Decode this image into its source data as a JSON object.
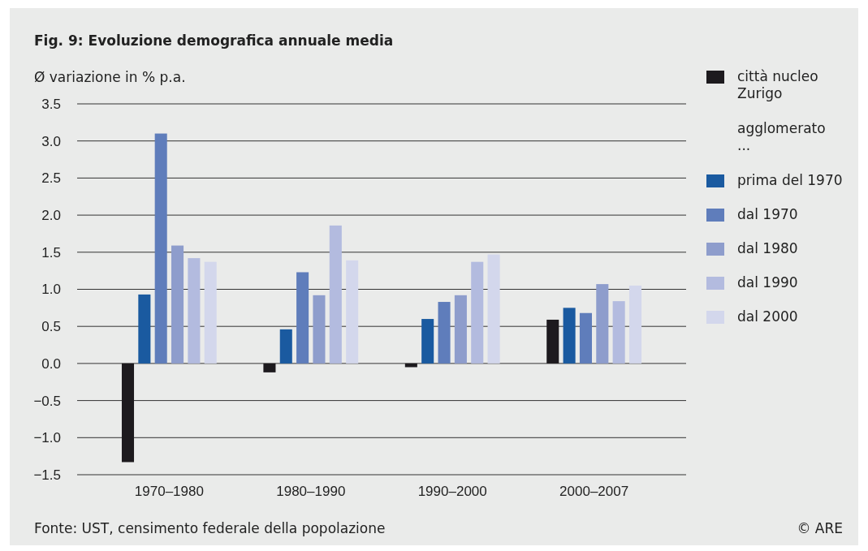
{
  "chart_data": {
    "type": "bar",
    "title": "Fig. 9: Evoluzione demografica annuale media",
    "ylabel": "Ø variazione in % p.a.",
    "categories": [
      "1970–1980",
      "1980–1990",
      "1990–2000",
      "2000–2007"
    ],
    "series": [
      {
        "name": "città nucleo Zurigo",
        "color": "#1d1a1e",
        "values": [
          -1.33,
          -0.12,
          -0.05,
          0.59
        ]
      },
      {
        "name": "prima del 1970",
        "color": "#1a5aa0",
        "values": [
          0.93,
          0.46,
          0.6,
          0.75
        ]
      },
      {
        "name": "dal 1970",
        "color": "#5f7dbb",
        "values": [
          3.1,
          1.23,
          0.83,
          0.68
        ]
      },
      {
        "name": "dal 1980",
        "color": "#8e9dcc",
        "values": [
          1.59,
          0.92,
          0.92,
          1.07
        ]
      },
      {
        "name": "dal 1990",
        "color": "#b3bbdf",
        "values": [
          1.42,
          1.86,
          1.37,
          0.84
        ]
      },
      {
        "name": "dal 2000",
        "color": "#d3d7ec",
        "values": [
          1.37,
          1.39,
          1.47,
          1.05
        ]
      }
    ],
    "ylim": [
      -1.5,
      3.5
    ],
    "yticks": [
      {
        "value": -1.5,
        "label": "−1.5"
      },
      {
        "value": -1,
        "label": "−1.0"
      },
      {
        "value": -0.5,
        "label": "−0.5"
      },
      {
        "value": 0,
        "label": "0.0"
      },
      {
        "value": 0.5,
        "label": "0.5"
      },
      {
        "value": 1,
        "label": "1.0"
      },
      {
        "value": 1.5,
        "label": "1.5"
      },
      {
        "value": 2,
        "label": "2.0"
      },
      {
        "value": 2.5,
        "label": "2.5"
      },
      {
        "value": 3,
        "label": "3.0"
      },
      {
        "value": 3.5,
        "label": "3.5"
      }
    ],
    "grid": "y",
    "legend": "right",
    "annotations": [
      "agglomerato ...",
      "Fonte: UST, censimento federale della popolazione",
      "© ARE"
    ]
  }
}
